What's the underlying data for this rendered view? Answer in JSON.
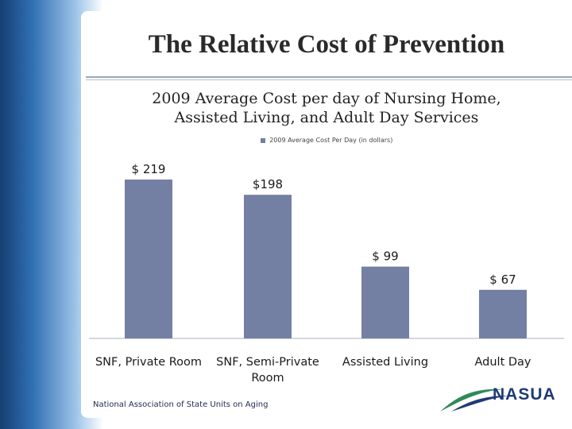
{
  "slide": {
    "title": "The Relative Cost of Prevention",
    "footer": "National Association of State Units on Aging",
    "logo_text": "NASUA"
  },
  "colors": {
    "bar": "#747fa4",
    "accent_blue": "#1f5a93",
    "logo_green": "#2e8a5a",
    "logo_navy": "#1f3a75"
  },
  "chart_data": {
    "type": "bar",
    "title_line1": "2009 Average Cost per day of Nursing Home,",
    "title_line2": "Assisted Living, and Adult Day Services",
    "legend": "2009 Average Cost Per Day (in dollars)",
    "categories": [
      "SNF, Private Room",
      "SNF, Semi-Private Room",
      "Assisted Living",
      "Adult Day"
    ],
    "category_lines": [
      [
        "SNF, Private Room"
      ],
      [
        "SNF, Semi-Private",
        "Room"
      ],
      [
        "Assisted Living"
      ],
      [
        "Adult Day"
      ]
    ],
    "values": [
      219,
      198,
      99,
      67
    ],
    "data_labels": [
      "$ 219",
      "$198",
      "$ 99",
      "$ 67"
    ],
    "ylim": [
      0,
      219
    ]
  }
}
